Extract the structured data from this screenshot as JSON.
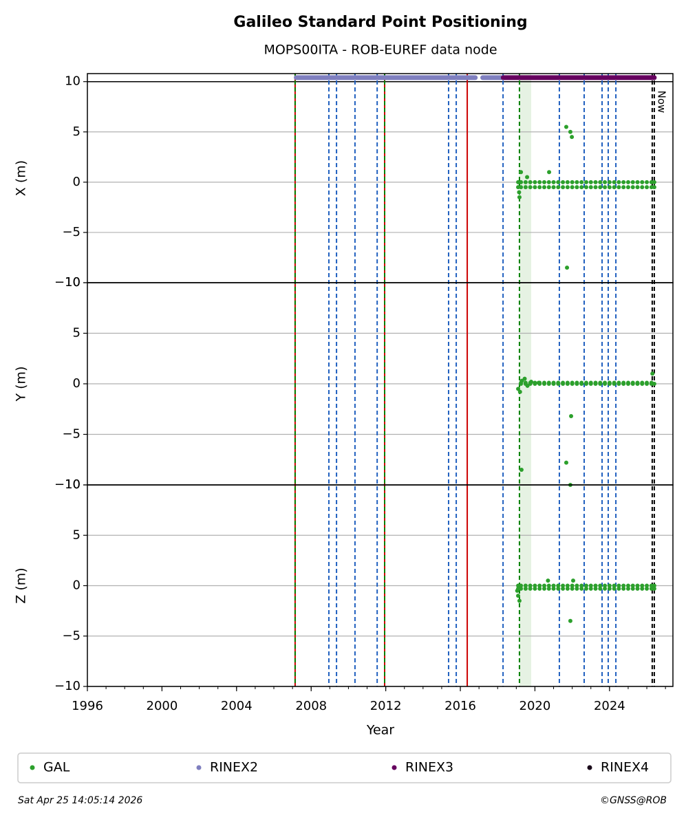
{
  "chart_data": {
    "type": "scatter",
    "title": "Galileo Standard Point Positioning",
    "subtitle": "MOPS00ITA - ROB-EUREF data node",
    "xlabel": "Year",
    "xlim": [
      1996,
      2027.4
    ],
    "xticks": [
      1996,
      2000,
      2004,
      2008,
      2012,
      2016,
      2020,
      2024
    ],
    "xminorticks": [
      1996,
      1997,
      1998,
      1999,
      2000,
      2001,
      2002,
      2003,
      2004,
      2005,
      2006,
      2007,
      2008,
      2009,
      2010,
      2011,
      2012,
      2013,
      2014,
      2015,
      2016,
      2017,
      2018,
      2019,
      2020,
      2021,
      2022,
      2023,
      2024,
      2025,
      2026,
      2027
    ],
    "legend": "bottom",
    "now": {
      "text": "Now",
      "x": 2026.4
    },
    "spans": [
      {
        "x0": 2019.17,
        "x1": 2019.8,
        "color": "#e6f2e3"
      }
    ],
    "vlines": [
      {
        "x": 2007.14,
        "color": "#cc0000",
        "dash": false
      },
      {
        "x": 2007.14,
        "color": "#008000",
        "dash": true
      },
      {
        "x": 2008.95,
        "color": "#1f5fbf",
        "dash": true
      },
      {
        "x": 2009.36,
        "color": "#1f5fbf",
        "dash": true
      },
      {
        "x": 2010.35,
        "color": "#1f5fbf",
        "dash": true
      },
      {
        "x": 2011.54,
        "color": "#1f5fbf",
        "dash": true
      },
      {
        "x": 2011.94,
        "color": "#cc0000",
        "dash": false
      },
      {
        "x": 2011.94,
        "color": "#008000",
        "dash": true
      },
      {
        "x": 2015.37,
        "color": "#1f5fbf",
        "dash": true
      },
      {
        "x": 2015.78,
        "color": "#1f5fbf",
        "dash": true
      },
      {
        "x": 2016.37,
        "color": "#cc0000",
        "dash": false
      },
      {
        "x": 2018.29,
        "color": "#1f5fbf",
        "dash": true
      },
      {
        "x": 2019.17,
        "color": "#008000",
        "dash": true
      },
      {
        "x": 2021.31,
        "color": "#1f5fbf",
        "dash": true
      },
      {
        "x": 2022.64,
        "color": "#1f5fbf",
        "dash": true
      },
      {
        "x": 2023.6,
        "color": "#1f5fbf",
        "dash": true
      },
      {
        "x": 2023.93,
        "color": "#1f5fbf",
        "dash": true
      },
      {
        "x": 2024.34,
        "color": "#1f5fbf",
        "dash": true
      },
      {
        "x": 2026.29,
        "color": "#000000",
        "dash": true
      },
      {
        "x": 2026.4,
        "color": "#000000",
        "dash": true
      }
    ],
    "panels": [
      {
        "ylabel": "X (m)",
        "ylim": [
          -10,
          10.8
        ],
        "grid": true,
        "hlines": [
          10
        ],
        "yticks": [
          {
            "value": -10,
            "label": "−10"
          },
          {
            "value": -5,
            "label": "−5"
          },
          0,
          5,
          10
        ]
      },
      {
        "ylabel": "Y (m)",
        "ylim": [
          -10,
          10
        ],
        "grid": true,
        "hlines": [],
        "yticks": [
          {
            "value": -10,
            "label": "−10"
          },
          {
            "value": -5,
            "label": "−5"
          },
          0,
          5,
          10
        ]
      },
      {
        "ylabel": "Z (m)",
        "ylim": [
          -10,
          10
        ],
        "grid": true,
        "hlines": [],
        "yticks": [
          {
            "value": -10,
            "label": "−10"
          },
          {
            "value": -5,
            "label": "−5"
          },
          0,
          5,
          10
        ]
      }
    ],
    "series": [
      {
        "name": "GAL",
        "color": "#2ca02c",
        "marker": "dot",
        "panels": [
          {
            "x": [
              2019.25,
              2019.5,
              2019.75,
              2020,
              2020.25,
              2020.5,
              2020.75,
              2021,
              2021.25,
              2021.5,
              2021.75,
              2022,
              2022.25,
              2022.5,
              2022.75,
              2023,
              2023.25,
              2023.5,
              2023.75,
              2024,
              2024.25,
              2024.5,
              2024.75,
              2025,
              2025.25,
              2025.5,
              2025.75,
              2026,
              2026.25,
              2019.25,
              2019.5,
              2019.75,
              2020,
              2020.25,
              2020.5,
              2020.75,
              2021,
              2021.25,
              2021.5,
              2021.75,
              2022,
              2022.25,
              2022.5,
              2022.75,
              2023,
              2023.25,
              2023.5,
              2023.75,
              2024,
              2024.25,
              2024.5,
              2024.75,
              2025,
              2025.25,
              2025.5,
              2025.75,
              2026,
              2026.25,
              2019.1,
              2019.1,
              2026.4,
              2026.4,
              2019.17,
              2019.15,
              2019.25,
              2019.58,
              2020.76,
              2021.68,
              2021.9,
              2021.98,
              2021.72
            ],
            "y": [
              0,
              0,
              0,
              0,
              0,
              0,
              0,
              0,
              0,
              0,
              0,
              0,
              0,
              0,
              0,
              0,
              0,
              0,
              0,
              0,
              0,
              0,
              0,
              0,
              0,
              0,
              0,
              0,
              0,
              -0.5,
              -0.5,
              -0.5,
              -0.5,
              -0.5,
              -0.5,
              -0.5,
              -0.5,
              -0.5,
              -0.5,
              -0.5,
              -0.5,
              -0.5,
              -0.5,
              -0.5,
              -0.5,
              -0.5,
              -0.5,
              -0.5,
              -0.5,
              -0.5,
              -0.5,
              -0.5,
              -0.5,
              -0.5,
              -0.5,
              -0.5,
              -0.5,
              -0.5,
              0,
              -0.5,
              0,
              -0.5,
              -1.5,
              -1,
              1,
              0.5,
              1,
              5.5,
              5,
              4.5,
              -8.5
            ]
          },
          {
            "x": [
              2019.25,
              2019.5,
              2019.75,
              2020,
              2020.25,
              2020.5,
              2020.75,
              2021,
              2021.25,
              2021.5,
              2021.75,
              2022,
              2022.25,
              2022.5,
              2022.75,
              2023,
              2023.25,
              2023.5,
              2023.75,
              2024,
              2024.25,
              2024.5,
              2024.75,
              2025,
              2025.25,
              2025.5,
              2025.75,
              2026,
              2026.25,
              2019.25,
              2019.5,
              2019.75,
              2020,
              2020.25,
              2020.5,
              2020.75,
              2021,
              2021.25,
              2021.5,
              2021.75,
              2022,
              2022.25,
              2022.5,
              2022.75,
              2023,
              2023.25,
              2023.5,
              2023.75,
              2024,
              2024.25,
              2024.5,
              2024.75,
              2025,
              2025.25,
              2025.5,
              2025.75,
              2026,
              2026.25,
              2019.1,
              2019.2,
              2019.3,
              2019.45,
              2019.6,
              2019.8,
              2020.2,
              2026.4,
              2026.3,
              2019.28,
              2021.68,
              2021.94,
              2021.9
            ],
            "y": [
              0,
              0,
              0,
              0,
              0,
              0,
              0,
              0,
              0,
              0,
              0,
              0,
              0,
              0,
              0,
              0,
              0,
              0,
              0,
              0,
              0,
              0,
              0,
              0,
              0,
              0,
              0,
              0,
              0,
              0.1,
              0.1,
              0.1,
              0.1,
              0.1,
              0.1,
              0.1,
              0.1,
              0.1,
              0.1,
              0.1,
              0.1,
              0.1,
              0.1,
              0.1,
              0.1,
              0.1,
              0.1,
              0.1,
              0.1,
              0.1,
              0.1,
              0.1,
              0.1,
              0.1,
              0.1,
              0.1,
              0.1,
              0.1,
              -0.5,
              -0.8,
              0.3,
              0.5,
              -0.2,
              0.2,
              0.1,
              0,
              1,
              -8.5,
              -7.8,
              -3.2,
              -10
            ]
          },
          {
            "x": [
              2019.25,
              2019.5,
              2019.75,
              2020,
              2020.25,
              2020.5,
              2020.75,
              2021,
              2021.25,
              2021.5,
              2021.75,
              2022,
              2022.25,
              2022.5,
              2022.75,
              2023,
              2023.25,
              2023.5,
              2023.75,
              2024,
              2024.25,
              2024.5,
              2024.75,
              2025,
              2025.25,
              2025.5,
              2025.75,
              2026,
              2026.25,
              2019.25,
              2019.5,
              2019.75,
              2020,
              2020.25,
              2020.5,
              2020.75,
              2021,
              2021.25,
              2021.5,
              2021.75,
              2022,
              2022.25,
              2022.5,
              2022.75,
              2023,
              2023.25,
              2023.5,
              2023.75,
              2024,
              2024.25,
              2024.5,
              2024.75,
              2025,
              2025.25,
              2025.5,
              2025.75,
              2026,
              2026.25,
              2019.1,
              2019.1,
              2026.4,
              2026.4,
              2019.17,
              2019.1,
              2019.05,
              2020.7,
              2022.05,
              2021.9
            ],
            "y": [
              0,
              0,
              0,
              0,
              0,
              0,
              0,
              0,
              0,
              0,
              0,
              0,
              0,
              0,
              0,
              0,
              0,
              0,
              0,
              0,
              0,
              0,
              0,
              0,
              0,
              0,
              0,
              0,
              0,
              -0.3,
              -0.3,
              -0.3,
              -0.3,
              -0.3,
              -0.3,
              -0.3,
              -0.3,
              -0.3,
              -0.3,
              -0.3,
              -0.3,
              -0.3,
              -0.3,
              -0.3,
              -0.3,
              -0.3,
              -0.3,
              -0.3,
              -0.3,
              -0.3,
              -0.3,
              -0.3,
              -0.3,
              -0.3,
              -0.3,
              -0.3,
              -0.3,
              -0.3,
              0,
              -0.3,
              0,
              -0.3,
              -1.5,
              -1,
              -0.5,
              0.5,
              0.5,
              -3.5
            ]
          }
        ]
      },
      {
        "name": "RINEX2",
        "color": "#7f7fbf",
        "marker": "bar",
        "panels": [
          {
            "x": [
              2007.2,
              2016.8,
              2017,
              2017.2,
              2018.2
            ],
            "y": [
              10.4,
              10.4,
              null,
              10.4,
              10.4
            ]
          }
        ]
      },
      {
        "name": "RINEX3",
        "color": "#66005f",
        "marker": "bar",
        "panels": [
          {
            "x": [
              2018.3,
              2026.4
            ],
            "y": [
              10.4,
              10.4
            ]
          }
        ]
      },
      {
        "name": "RINEX4",
        "color": "#1a0a1a",
        "marker": "bar",
        "panels": [
          {
            "x": [],
            "y": []
          }
        ]
      }
    ]
  },
  "footer": {
    "timestamp": "Sat Apr 25 14:05:14 2026",
    "credit": "©GNSS@ROB"
  }
}
